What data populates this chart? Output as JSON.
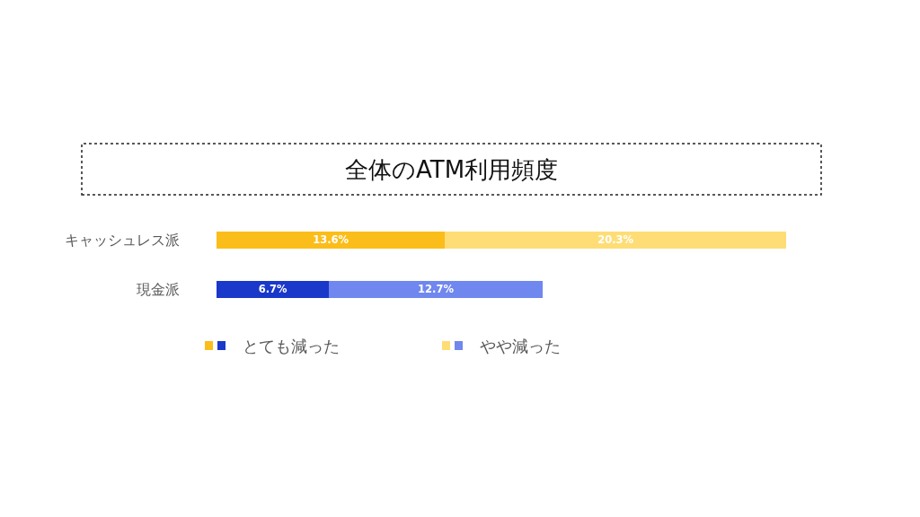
{
  "chart_data": {
    "type": "bar",
    "orientation": "horizontal",
    "stacked": true,
    "title": "全体のATM利用頻度",
    "categories": [
      "キャッシュレス派",
      "現金派"
    ],
    "series": [
      {
        "name": "とても減った",
        "colors": [
          "#fbbd19",
          "#1a38c9"
        ],
        "values": [
          13.6,
          6.7
        ],
        "value_labels": [
          "13.6%",
          "6.7%"
        ]
      },
      {
        "name": "やや減った",
        "colors": [
          "#fedd76",
          "#6f87ee"
        ],
        "values": [
          20.3,
          12.7
        ],
        "value_labels": [
          "20.3%",
          "12.7%"
        ]
      }
    ],
    "legend": "bottom",
    "tick_labels": "y"
  }
}
